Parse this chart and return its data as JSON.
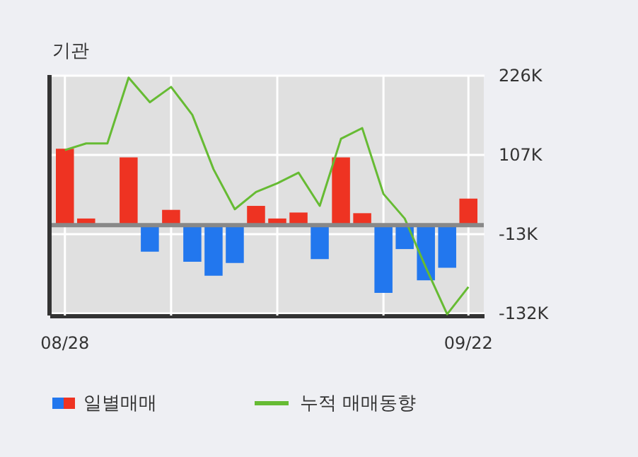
{
  "chart_data": {
    "type": "bar",
    "title": "기관",
    "categories": [
      "08/28",
      null,
      null,
      null,
      null,
      null,
      null,
      null,
      null,
      null,
      null,
      null,
      null,
      null,
      null,
      null,
      null,
      null,
      null,
      "09/22"
    ],
    "series": [
      {
        "name": "일별매매",
        "colors": [
          "#ee3322",
          "#ee3322",
          "#ee3322",
          "#ee3322",
          "#2277ee",
          "#ee3322",
          "#2277ee",
          "#2277ee",
          "#2277ee",
          "#ee3322",
          "#ee3322",
          "#ee3322",
          "#2277ee",
          "#ee3322",
          "#ee3322",
          "#2277ee",
          "#2277ee",
          "#2277ee",
          "#2277ee",
          "#ee3322"
        ],
        "values": [
          115,
          10,
          0,
          102,
          -40,
          23,
          -55,
          -76,
          -57,
          29,
          10,
          19,
          -51,
          102,
          18,
          -102,
          -36,
          -83,
          -64,
          40
        ]
      },
      {
        "name": "누적 매매동향",
        "type": "line",
        "color": "#66bb33",
        "values": [
          113,
          123,
          123,
          222,
          185,
          208,
          166,
          84,
          24,
          50,
          63,
          79,
          29,
          130,
          146,
          47,
          10,
          -64,
          -134,
          -93
        ]
      }
    ],
    "ylim": [
      -136,
      226
    ],
    "yticks": [
      {
        "value": 226,
        "label": "226K"
      },
      {
        "value": 107,
        "label": "107K"
      },
      {
        "value": -13,
        "label": "-13K"
      },
      {
        "value": -132,
        "label": "-132K"
      }
    ],
    "ref_lines": [
      {
        "axis": "y",
        "value": 0,
        "color": "#888888"
      }
    ],
    "grid": true,
    "legend": "bottom"
  }
}
